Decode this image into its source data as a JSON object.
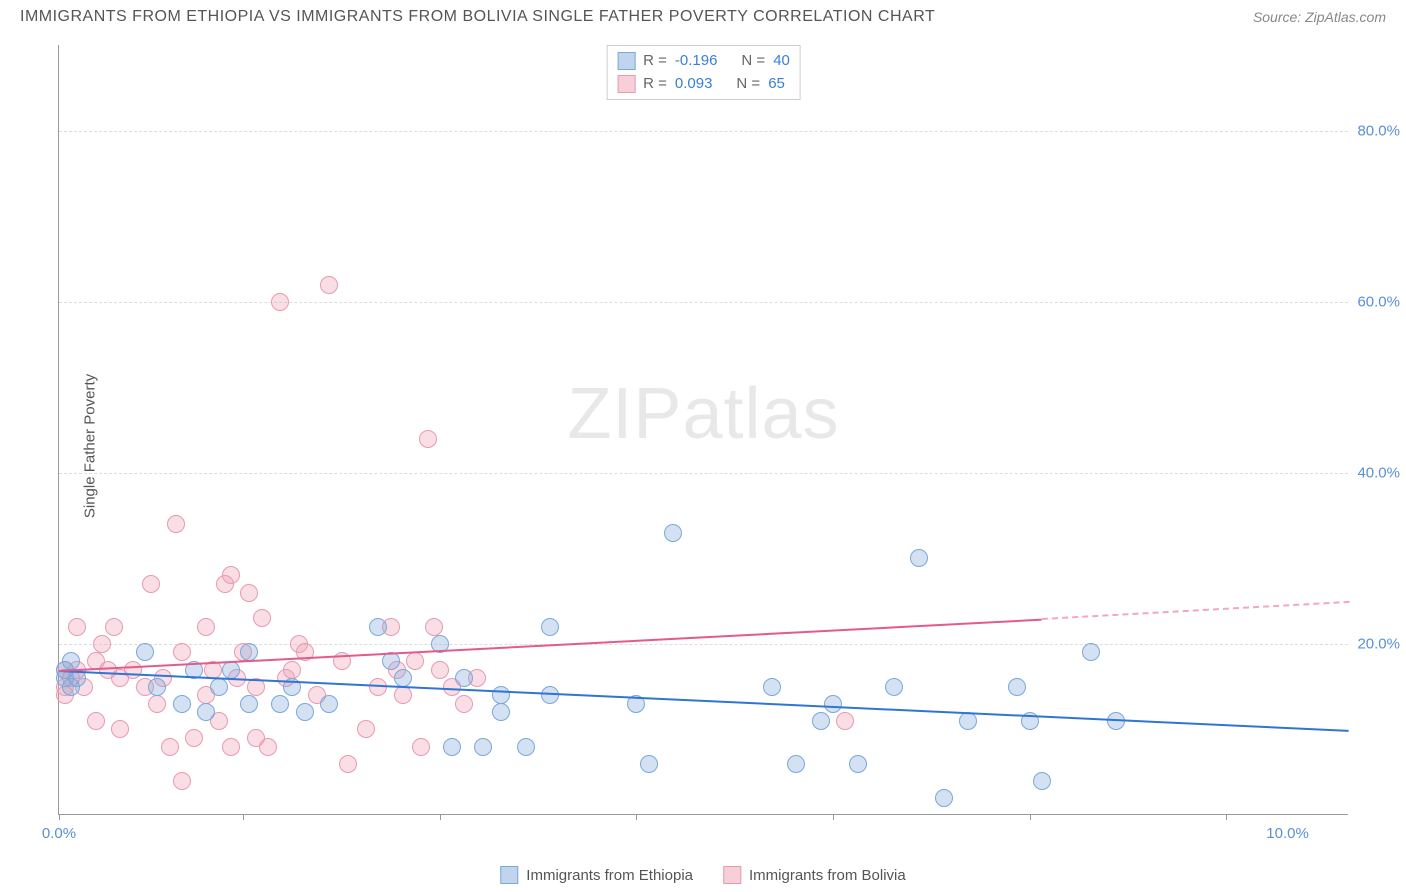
{
  "title": "IMMIGRANTS FROM ETHIOPIA VS IMMIGRANTS FROM BOLIVIA SINGLE FATHER POVERTY CORRELATION CHART",
  "source": "Source: ZipAtlas.com",
  "y_axis_label": "Single Father Poverty",
  "watermark_a": "ZIP",
  "watermark_b": "atlas",
  "chart": {
    "xlim": [
      0,
      10.5
    ],
    "ylim": [
      0,
      90
    ],
    "x_ticks": [
      0.0,
      10.0
    ],
    "x_tick_labels": [
      "0.0%",
      "10.0%"
    ],
    "x_minor_ticks": [
      0.0,
      1.5,
      3.1,
      4.7,
      6.3,
      7.9,
      9.5
    ],
    "y_ticks": [
      20.0,
      40.0,
      60.0,
      80.0
    ],
    "y_tick_labels": [
      "20.0%",
      "40.0%",
      "60.0%",
      "80.0%"
    ],
    "grid_color": "#dddddd",
    "background_color": "#ffffff"
  },
  "series": {
    "ethiopia": {
      "label": "Immigrants from Ethiopia",
      "color_fill": "rgba(130,170,220,0.35)",
      "color_stroke": "#7aa8d8",
      "trend_color": "#2e75d6",
      "R": "-0.196",
      "N": "40",
      "trend": {
        "x0": 0,
        "y0": 17,
        "x1": 10.5,
        "y1": 10
      },
      "points": [
        [
          0.05,
          17
        ],
        [
          0.05,
          16
        ],
        [
          0.1,
          15
        ],
        [
          0.1,
          18
        ],
        [
          0.15,
          16
        ],
        [
          0.7,
          19
        ],
        [
          0.8,
          15
        ],
        [
          1.0,
          13
        ],
        [
          1.1,
          17
        ],
        [
          1.2,
          12
        ],
        [
          1.3,
          15
        ],
        [
          1.4,
          17
        ],
        [
          1.55,
          19
        ],
        [
          1.55,
          13
        ],
        [
          1.8,
          13
        ],
        [
          1.9,
          15
        ],
        [
          2.0,
          12
        ],
        [
          2.2,
          13
        ],
        [
          2.6,
          22
        ],
        [
          2.7,
          18
        ],
        [
          2.8,
          16
        ],
        [
          3.1,
          20
        ],
        [
          3.2,
          8
        ],
        [
          3.3,
          16
        ],
        [
          3.45,
          8
        ],
        [
          3.6,
          12
        ],
        [
          3.6,
          14
        ],
        [
          3.8,
          8
        ],
        [
          4.0,
          22
        ],
        [
          4.0,
          14
        ],
        [
          4.7,
          13
        ],
        [
          4.8,
          6
        ],
        [
          5.0,
          33
        ],
        [
          5.8,
          15
        ],
        [
          6.0,
          6
        ],
        [
          6.2,
          11
        ],
        [
          6.3,
          13
        ],
        [
          6.5,
          6
        ],
        [
          6.8,
          15
        ],
        [
          7.0,
          30
        ],
        [
          7.2,
          2
        ],
        [
          7.4,
          11
        ],
        [
          7.8,
          15
        ],
        [
          7.9,
          11
        ],
        [
          8.0,
          4
        ],
        [
          8.4,
          19
        ],
        [
          8.6,
          11
        ]
      ]
    },
    "bolivia": {
      "label": "Immigrants from Bolivia",
      "color_fill": "rgba(240,160,180,0.35)",
      "color_stroke": "#e89ab0",
      "trend_color": "#e55a8a",
      "R": "0.093",
      "N": "65",
      "trend": {
        "x0": 0,
        "y0": 17,
        "x1": 8.0,
        "y1": 23
      },
      "trend_dashed": {
        "x0": 8.0,
        "y0": 23,
        "x1": 10.5,
        "y1": 25
      },
      "points": [
        [
          0.05,
          15
        ],
        [
          0.05,
          17
        ],
        [
          0.05,
          14
        ],
        [
          0.1,
          16
        ],
        [
          0.15,
          17
        ],
        [
          0.15,
          22
        ],
        [
          0.2,
          15
        ],
        [
          0.3,
          18
        ],
        [
          0.3,
          11
        ],
        [
          0.35,
          20
        ],
        [
          0.4,
          17
        ],
        [
          0.45,
          22
        ],
        [
          0.5,
          10
        ],
        [
          0.5,
          16
        ],
        [
          0.6,
          17
        ],
        [
          0.7,
          15
        ],
        [
          0.75,
          27
        ],
        [
          0.8,
          13
        ],
        [
          0.85,
          16
        ],
        [
          0.9,
          8
        ],
        [
          0.95,
          34
        ],
        [
          1.0,
          19
        ],
        [
          1.0,
          4
        ],
        [
          1.1,
          9
        ],
        [
          1.2,
          22
        ],
        [
          1.2,
          14
        ],
        [
          1.25,
          17
        ],
        [
          1.3,
          11
        ],
        [
          1.35,
          27
        ],
        [
          1.4,
          8
        ],
        [
          1.4,
          28
        ],
        [
          1.45,
          16
        ],
        [
          1.5,
          19
        ],
        [
          1.55,
          26
        ],
        [
          1.6,
          15
        ],
        [
          1.6,
          9
        ],
        [
          1.65,
          23
        ],
        [
          1.7,
          8
        ],
        [
          1.8,
          60
        ],
        [
          1.85,
          16
        ],
        [
          1.9,
          17
        ],
        [
          1.95,
          20
        ],
        [
          2.0,
          19
        ],
        [
          2.1,
          14
        ],
        [
          2.2,
          62
        ],
        [
          2.3,
          18
        ],
        [
          2.35,
          6
        ],
        [
          2.5,
          10
        ],
        [
          2.6,
          15
        ],
        [
          2.7,
          22
        ],
        [
          2.75,
          17
        ],
        [
          2.8,
          14
        ],
        [
          2.9,
          18
        ],
        [
          2.95,
          8
        ],
        [
          3.0,
          44
        ],
        [
          3.05,
          22
        ],
        [
          3.1,
          17
        ],
        [
          3.2,
          15
        ],
        [
          3.3,
          13
        ],
        [
          3.4,
          16
        ],
        [
          6.4,
          11
        ]
      ]
    }
  },
  "stats_labels": {
    "R": "R =",
    "N": "N ="
  }
}
